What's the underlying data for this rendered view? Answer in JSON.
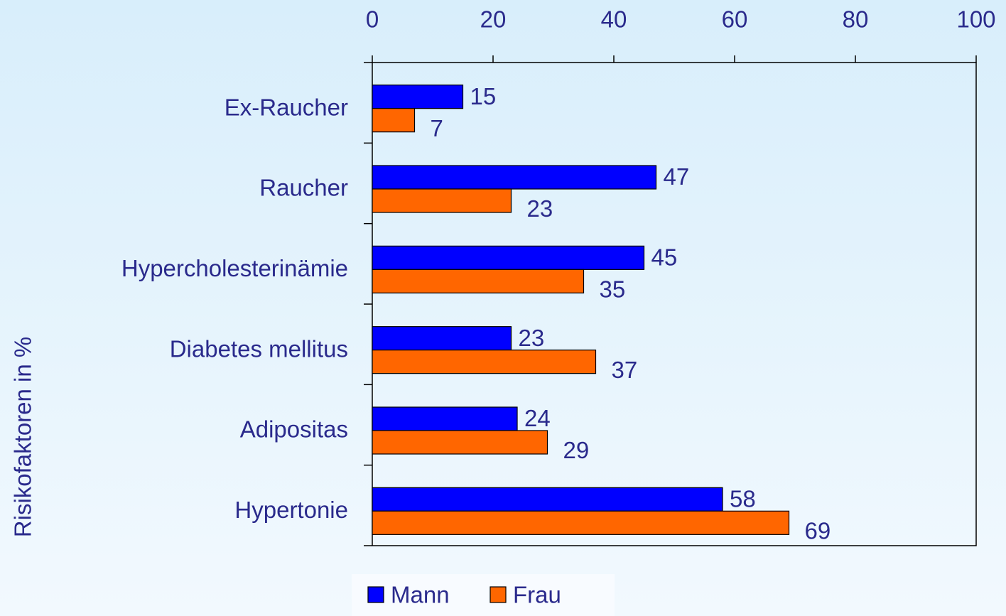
{
  "chart_data": {
    "type": "barh",
    "y_label": "Risikofaktoren in %",
    "categories": [
      "Ex-Raucher",
      "Raucher",
      "Hypercholesterinämie",
      "Diabetes mellitus",
      "Adipositas",
      "Hypertonie"
    ],
    "series": [
      {
        "name": "Mann",
        "color": "#0000ff",
        "values": [
          15,
          47,
          45,
          23,
          24,
          58
        ]
      },
      {
        "name": "Frau",
        "color": "#ff6600",
        "values": [
          7,
          23,
          35,
          37,
          29,
          69
        ]
      }
    ],
    "xlim": [
      0,
      100
    ],
    "xticks": [
      0,
      20,
      40,
      60,
      80,
      100
    ],
    "grid": false,
    "legend": "bottom"
  }
}
